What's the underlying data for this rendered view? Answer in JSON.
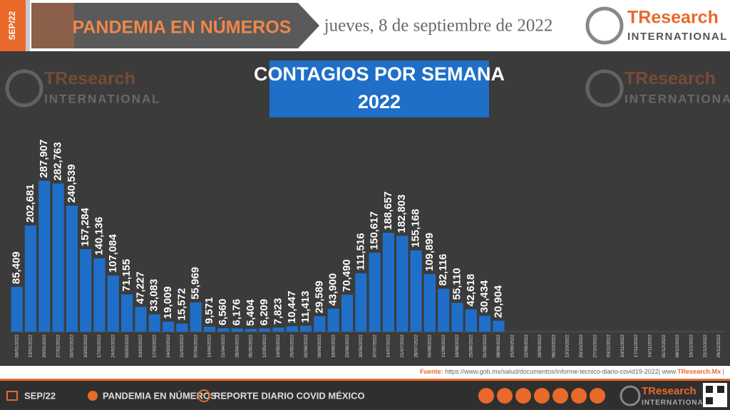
{
  "header": {
    "badge": "SEP/22",
    "title": "PANDEMIA EN NÚMEROS",
    "date": "jueves, 8 de septiembre de 2022",
    "brand": "TResearch",
    "brand_sub": "INTERNATIONAL"
  },
  "chart_data": {
    "type": "bar",
    "title": "CONTAGIOS POR SEMANA",
    "subtitle": "2022",
    "color": "#1f6fc8",
    "categories": [
      "06/01/2022",
      "13/01/2022",
      "20/01/2022",
      "27/01/2022",
      "03/02/2022",
      "10/02/2022",
      "17/02/2022",
      "24/02/2022",
      "03/03/2022",
      "10/03/2022",
      "17/03/2022",
      "24/03/2022",
      "31/03/2022",
      "07/04/2022",
      "14/04/2022",
      "21/04/2022",
      "28/04/2022",
      "05/05/2022",
      "12/05/2022",
      "19/05/2022",
      "26/05/2022",
      "02/06/2022",
      "09/06/2022",
      "16/06/2022",
      "23/06/2022",
      "30/06/2022",
      "07/07/2022",
      "14/07/2022",
      "21/07/2022",
      "28/07/2022",
      "04/08/2022",
      "11/08/2022",
      "18/08/2022",
      "25/08/2022",
      "01/09/2022",
      "08/09/2022",
      "15/09/2022",
      "22/09/2022",
      "29/09/2022",
      "06/10/2022",
      "13/10/2022",
      "20/10/2022",
      "27/10/2022",
      "03/11/2022",
      "10/11/2022",
      "17/11/2022",
      "24/11/2022",
      "01/12/2022",
      "08/12/2022",
      "15/12/2022",
      "22/12/2022",
      "29/12/2022"
    ],
    "values": [
      85409,
      202681,
      287907,
      282763,
      240539,
      157284,
      140136,
      107084,
      71155,
      47227,
      33083,
      19009,
      15572,
      55969,
      9571,
      6560,
      6176,
      5404,
      6209,
      7823,
      10447,
      11413,
      29589,
      43900,
      70490,
      111516,
      150617,
      188657,
      182803,
      155168,
      109899,
      82116,
      55110,
      42618,
      30434,
      20904,
      null,
      null,
      null,
      null,
      null,
      null,
      null,
      null,
      null,
      null,
      null,
      null,
      null,
      null,
      null,
      null
    ],
    "value_labels": [
      "85,409",
      "202,681",
      "287,907",
      "282,763",
      "240,539",
      "157,284",
      "140,136",
      "107,084",
      "71,155",
      "47,227",
      "33,083",
      "19,009",
      "15,572",
      "55,969",
      "9,571",
      "6,560",
      "6,176",
      "5,404",
      "6,209",
      "7,823",
      "10,447",
      "11,413",
      "29,589",
      "43,900",
      "70,490",
      "111,516",
      "150,617",
      "188,657",
      "182,803",
      "155,168",
      "109,899",
      "82,116",
      "55,110",
      "42,618",
      "30,434",
      "20,904",
      null,
      null,
      null,
      null,
      null,
      null,
      null,
      null,
      null,
      null,
      null,
      null,
      null,
      null,
      null,
      null
    ]
  },
  "source": {
    "label": "Fuente:",
    "url": "https://www.gob.mx/salud/documentos/informe-tecnico-diario-covid19-2022| www.",
    "brand": "TResearch.Mx",
    "end": "|"
  },
  "footer": {
    "badge": "SEP/22",
    "title": "PANDEMIA EN NÚMEROS",
    "report": "REPORTE DIARIO COVID MÉXICO",
    "brand": "TResearch",
    "brand_sub": "INTERNATIONAL"
  }
}
